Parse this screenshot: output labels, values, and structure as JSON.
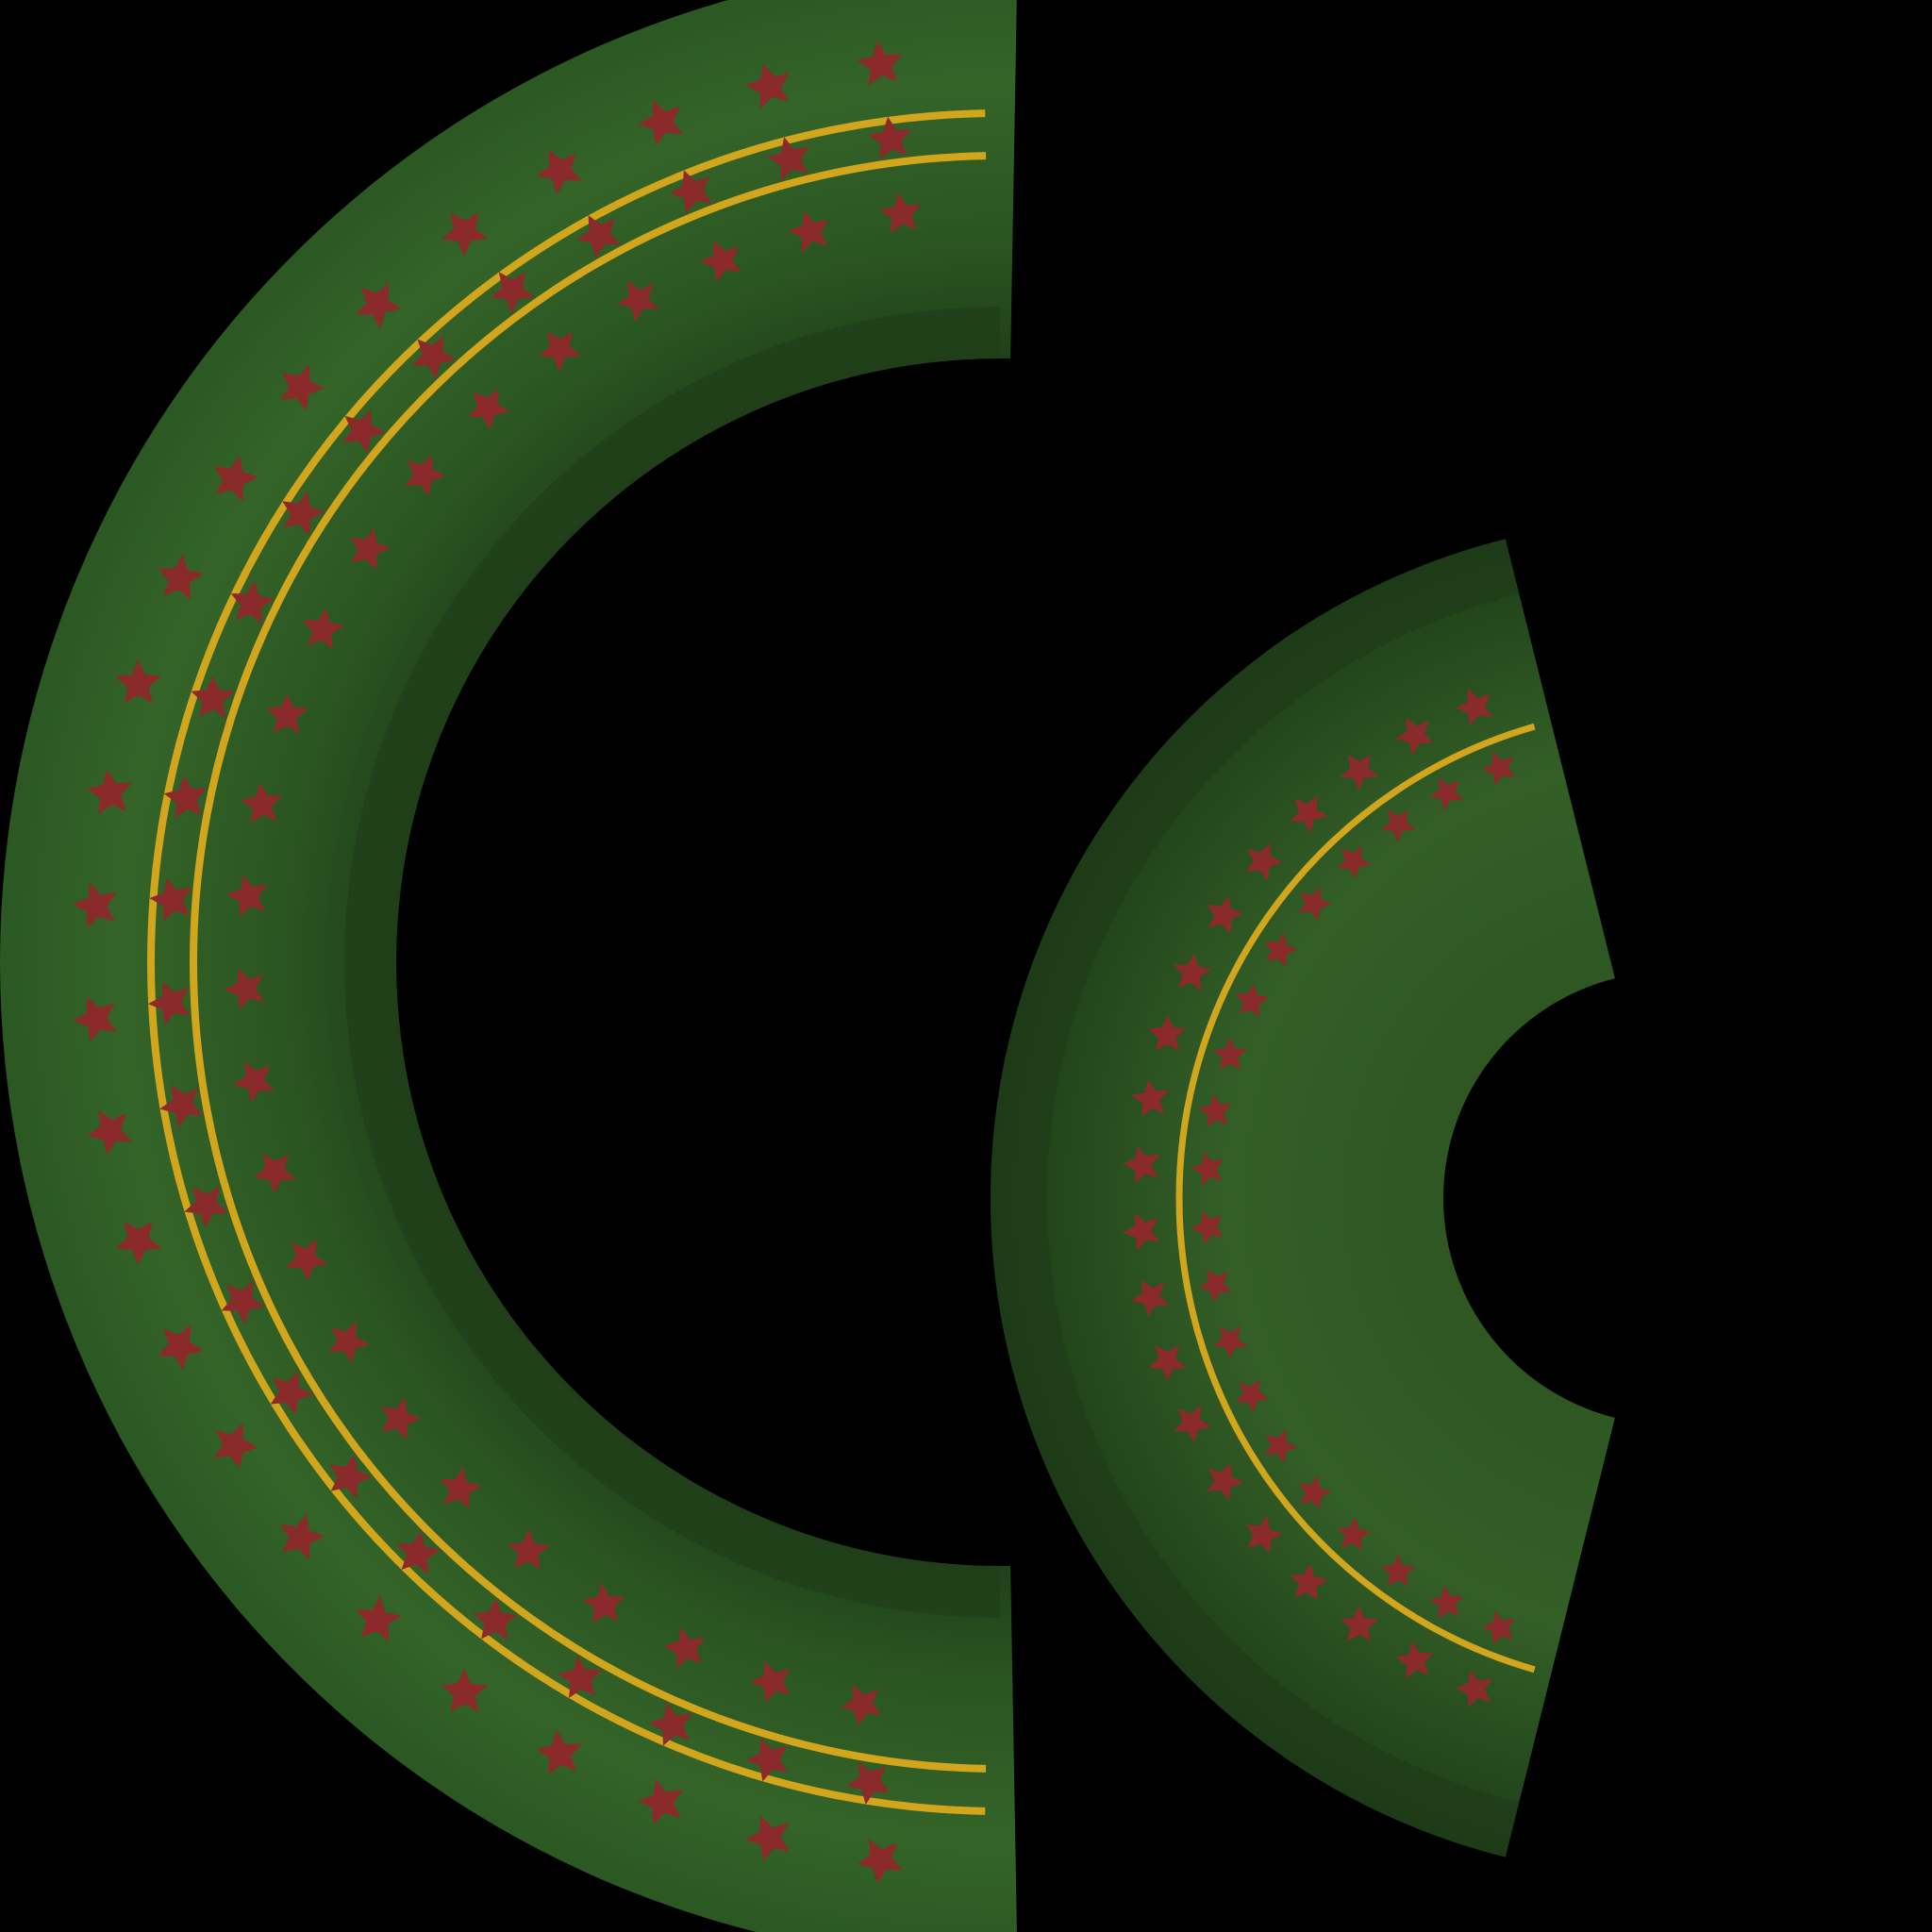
{
  "colors": {
    "background": "#000000",
    "band_light": "#3b6e2e",
    "band_mid": "#2c5a22",
    "band_dark": "#1d3a17",
    "inner_rim": "#20401a",
    "trim_gold": "#d1a51c",
    "star_red": "#8a2a2a"
  },
  "pieces": [
    {
      "name": "large-c-ring",
      "trim_lines": 2,
      "star_rows": 3,
      "stars_per_row": 24
    },
    {
      "name": "small-c-ring",
      "trim_lines": 1,
      "star_rows": 2,
      "stars_per_row": 20
    }
  ]
}
